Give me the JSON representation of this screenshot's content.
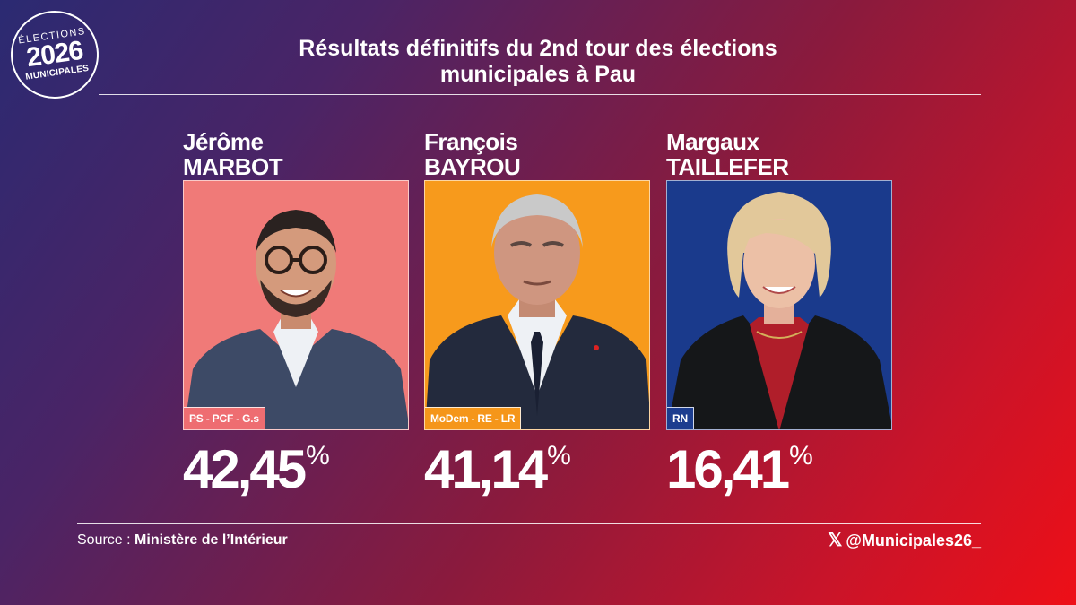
{
  "logo": {
    "line1": "ÉLECTIONS",
    "line2": "2026",
    "line3": "MUNICIPALES"
  },
  "title": {
    "line1": "Résultats définitifs du 2nd tour des élections",
    "line2": "municipales à Pau"
  },
  "candidates": [
    {
      "first_name": "Jérôme",
      "last_name": "MARBOT",
      "party": "PS - PCF - G.s",
      "percent": "42,45",
      "percent_sign": "%",
      "color": "#f07a78",
      "party_color": "#ee6d71"
    },
    {
      "first_name": "François",
      "last_name": "BAYROU",
      "party": "MoDem - RE - LR",
      "percent": "41,14",
      "percent_sign": "%",
      "color": "#f79a1c",
      "party_color": "#f5961a"
    },
    {
      "first_name": "Margaux",
      "last_name": "TAILLEFER",
      "party": "RN",
      "percent": "16,41",
      "percent_sign": "%",
      "color": "#1a3a8c",
      "party_color": "#1c3d8f"
    }
  ],
  "footer": {
    "source_label": "Source :",
    "source_value": "Ministère de l’Intérieur",
    "handle": "@Municipales26_",
    "x_icon": "𝕏"
  }
}
